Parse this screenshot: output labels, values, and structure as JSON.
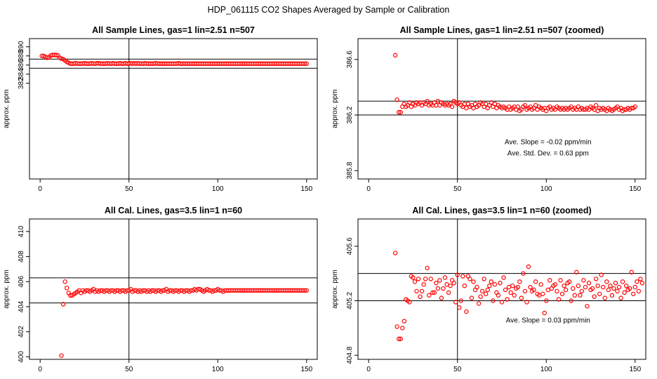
{
  "page_title": "HDP_061115  CO2 Shapes Averaged by Sample or Calibration",
  "colors": {
    "points": "#ff0000",
    "axes": "#000000",
    "background": "#ffffff"
  },
  "chart_data": [
    {
      "type": "scatter",
      "title": "All Sample Lines, gas=1 lin=2.51 n=507",
      "xlabel": "",
      "ylabel": "approx. ppm",
      "xlim": [
        0,
        150
      ],
      "ylim": [
        361,
        391.8
      ],
      "xticks": [
        "0",
        "50",
        "100",
        "150"
      ],
      "yticks": [
        "382",
        "384",
        "386",
        "388",
        "390"
      ],
      "ytick_values": [
        382,
        384,
        386,
        388,
        390
      ],
      "hlines": [
        387.3,
        385.3
      ],
      "vlines": [
        50
      ],
      "annotations": [],
      "x_start": 1,
      "x_step": 1,
      "values": [
        388.0,
        388.0,
        387.8,
        387.6,
        387.7,
        388.1,
        388.2,
        388.2,
        388.2,
        388.1,
        387.6,
        387.4,
        387.3,
        387.0,
        386.7,
        386.5,
        386.3,
        386.3,
        386.3,
        386.4,
        386.3,
        386.3,
        386.3,
        386.3,
        386.4,
        386.3,
        386.3,
        386.3,
        386.4,
        386.3,
        386.3,
        386.4,
        386.4,
        386.3,
        386.3,
        386.3,
        386.3,
        386.4,
        386.3,
        386.3,
        386.4,
        386.3,
        386.3,
        386.3,
        386.4,
        386.3,
        386.3,
        386.4,
        386.3,
        386.3,
        386.4,
        386.3,
        386.4,
        386.3,
        386.4,
        386.3,
        386.3,
        386.3,
        386.4,
        386.3,
        386.3,
        386.3,
        386.3,
        386.3,
        386.4,
        386.3,
        386.3,
        386.3,
        386.3,
        386.3,
        386.3,
        386.3,
        386.3,
        386.3,
        386.3,
        386.3,
        386.3,
        386.4,
        386.3,
        386.3,
        386.3,
        386.3,
        386.3,
        386.3,
        386.3,
        386.3,
        386.3,
        386.3,
        386.3,
        386.3,
        386.3,
        386.3,
        386.3,
        386.3,
        386.3,
        386.3,
        386.3,
        386.3,
        386.3,
        386.3,
        386.3,
        386.3,
        386.3,
        386.3,
        386.3,
        386.3,
        386.3,
        386.3,
        386.3,
        386.3,
        386.3,
        386.3,
        386.3,
        386.3,
        386.3,
        386.3,
        386.3,
        386.3,
        386.3,
        386.3,
        386.3,
        386.3,
        386.3,
        386.3,
        386.3,
        386.3,
        386.3,
        386.3,
        386.3,
        386.3,
        386.3,
        386.3,
        386.3,
        386.3,
        386.3,
        386.3,
        386.3,
        386.3,
        386.3,
        386.3,
        386.3,
        386.3,
        386.3,
        386.3,
        386.3,
        386.3,
        386.3,
        386.3,
        386.3,
        386.3
      ]
    },
    {
      "type": "scatter",
      "title": "All Sample Lines, gas=1 lin=2.51 n=507 (zoomed)",
      "xlabel": "",
      "ylabel": "approx. ppm",
      "xlim": [
        0,
        150
      ],
      "ylim": [
        385.74,
        386.75
      ],
      "xticks": [
        "0",
        "50",
        "100",
        "150"
      ],
      "yticks": [
        "385.8",
        "386.2",
        "386.6"
      ],
      "ytick_values": [
        385.8,
        386.2,
        386.6
      ],
      "hlines": [
        386.3,
        386.2
      ],
      "vlines": [
        50
      ],
      "annotations": [
        {
          "text": "Ave. Slope =  -0.02  ppm/min",
          "x": 101,
          "y": 385.99
        },
        {
          "text": "Ave. Std. Dev. =  0.63  ppm",
          "x": 101,
          "y": 385.91
        }
      ],
      "x_start": 15,
      "x_step": 1,
      "values": [
        386.63,
        386.31,
        386.22,
        386.22,
        386.26,
        386.28,
        386.26,
        386.27,
        386.29,
        386.26,
        386.28,
        386.27,
        386.29,
        386.28,
        386.29,
        386.27,
        386.29,
        386.28,
        386.3,
        386.27,
        386.28,
        386.27,
        386.29,
        386.27,
        386.3,
        386.27,
        386.29,
        386.28,
        386.27,
        386.28,
        386.27,
        386.28,
        386.26,
        386.3,
        386.29,
        386.28,
        386.29,
        386.27,
        386.26,
        386.28,
        386.25,
        386.28,
        386.26,
        386.27,
        386.25,
        386.28,
        386.26,
        386.27,
        386.29,
        386.28,
        386.26,
        386.28,
        386.25,
        386.27,
        386.29,
        386.26,
        386.28,
        386.25,
        386.27,
        386.26,
        386.25,
        386.26,
        386.25,
        386.24,
        386.26,
        386.24,
        386.25,
        386.26,
        386.24,
        386.26,
        386.23,
        386.24,
        386.26,
        386.27,
        386.24,
        386.25,
        386.26,
        386.24,
        386.25,
        386.27,
        386.24,
        386.26,
        386.25,
        386.24,
        386.25,
        386.23,
        386.25,
        386.26,
        386.24,
        386.25,
        386.24,
        386.26,
        386.25,
        386.24,
        386.25,
        386.24,
        386.25,
        386.24,
        386.25,
        386.26,
        386.24,
        386.25,
        386.24,
        386.26,
        386.24,
        386.25,
        386.24,
        386.24,
        386.25,
        386.24,
        386.26,
        386.25,
        386.24,
        386.27,
        386.23,
        386.25,
        386.24,
        386.25,
        386.24,
        386.23,
        386.25,
        386.24,
        386.23,
        386.24,
        386.25,
        386.26,
        386.24,
        386.25,
        386.23,
        386.24,
        386.24,
        386.25,
        386.24,
        386.25,
        386.25,
        386.26
      ]
    },
    {
      "type": "scatter",
      "title": "All Cal. Lines, gas=3.5 lin=1 n=60",
      "xlabel": "",
      "ylabel": "approx. ppm",
      "xlim": [
        0,
        150
      ],
      "ylim": [
        399.8,
        411.0
      ],
      "xticks": [
        "0",
        "50",
        "100",
        "150"
      ],
      "yticks": [
        "400",
        "402",
        "404",
        "406",
        "408",
        "410"
      ],
      "ytick_values": [
        400,
        402,
        404,
        406,
        408,
        410
      ],
      "hlines": [
        406.3,
        404.3
      ],
      "vlines": [
        50
      ],
      "annotations": [],
      "x_start": 12,
      "x_step": 1,
      "values": [
        400.1,
        404.2,
        406.0,
        405.5,
        405.1,
        404.9,
        404.9,
        405.0,
        405.1,
        405.2,
        405.3,
        405.1,
        405.3,
        405.2,
        405.3,
        405.3,
        405.2,
        405.3,
        405.4,
        405.2,
        405.3,
        405.2,
        405.3,
        405.3,
        405.2,
        405.3,
        405.3,
        405.2,
        405.3,
        405.3,
        405.2,
        405.3,
        405.3,
        405.2,
        405.3,
        405.3,
        405.2,
        405.3,
        405.3,
        405.4,
        405.2,
        405.3,
        405.3,
        405.2,
        405.3,
        405.2,
        405.3,
        405.3,
        405.2,
        405.3,
        405.2,
        405.3,
        405.3,
        405.2,
        405.3,
        405.3,
        405.2,
        405.3,
        405.3,
        405.4,
        405.2,
        405.3,
        405.3,
        405.2,
        405.3,
        405.3,
        405.2,
        405.3,
        405.3,
        405.2,
        405.3,
        405.3,
        405.2,
        405.3,
        405.3,
        405.4,
        405.3,
        405.4,
        405.4,
        405.3,
        405.2,
        405.3,
        405.4,
        405.3,
        405.3,
        405.2,
        405.3,
        405.3,
        405.4,
        405.3,
        405.3,
        405.2,
        405.3,
        405.3,
        405.3,
        405.3,
        405.3,
        405.3,
        405.3,
        405.3,
        405.3,
        405.3,
        405.3,
        405.3,
        405.3,
        405.3,
        405.3,
        405.3,
        405.3,
        405.3,
        405.3,
        405.3,
        405.3,
        405.3,
        405.3,
        405.3,
        405.3,
        405.3,
        405.3,
        405.3,
        405.3,
        405.3,
        405.3,
        405.3,
        405.3,
        405.3,
        405.3,
        405.3,
        405.3,
        405.3,
        405.3,
        405.3,
        405.3,
        405.3,
        405.3,
        405.3,
        405.3,
        405.3,
        405.3
      ]
    },
    {
      "type": "scatter",
      "title": "All Cal. Lines, gas=3.5 lin=1 n=60 (zoomed)",
      "xlabel": "",
      "ylabel": "approx. ppm",
      "xlim": [
        0,
        150
      ],
      "ylim": [
        404.77,
        405.8
      ],
      "xticks": [
        "0",
        "50",
        "100",
        "150"
      ],
      "yticks": [
        "404.8",
        "405.2",
        "405.6"
      ],
      "ytick_values": [
        404.8,
        405.2,
        405.6
      ],
      "hlines": [
        405.4,
        405.2
      ],
      "vlines": [
        50
      ],
      "annotations": [
        {
          "text": "Ave. Slope =  0.03  ppm/min",
          "x": 101,
          "y": 405.04
        }
      ],
      "x_start": 15,
      "x_step": 1,
      "values": [
        405.55,
        405.01,
        404.92,
        404.92,
        405.0,
        405.05,
        405.21,
        405.2,
        405.19,
        405.38,
        405.37,
        405.34,
        405.27,
        405.36,
        405.23,
        405.27,
        405.32,
        405.36,
        405.44,
        405.24,
        405.36,
        405.26,
        405.26,
        405.33,
        405.29,
        405.35,
        405.22,
        405.29,
        405.37,
        405.32,
        405.26,
        405.31,
        405.35,
        405.33,
        405.19,
        405.39,
        405.15,
        405.2,
        405.38,
        405.31,
        405.12,
        405.38,
        405.36,
        405.22,
        405.34,
        405.28,
        405.3,
        405.18,
        405.23,
        405.27,
        405.36,
        405.25,
        405.28,
        405.31,
        405.34,
        405.2,
        405.32,
        405.26,
        405.24,
        405.33,
        405.19,
        405.37,
        405.28,
        405.21,
        405.3,
        405.26,
        405.31,
        405.24,
        405.29,
        405.3,
        405.34,
        405.22,
        405.4,
        405.27,
        405.19,
        405.45,
        405.3,
        405.27,
        405.28,
        405.34,
        405.25,
        405.24,
        405.32,
        405.25,
        405.11,
        405.2,
        405.28,
        405.35,
        405.29,
        405.31,
        405.32,
        405.27,
        405.21,
        405.35,
        405.25,
        405.31,
        405.28,
        405.33,
        405.34,
        405.2,
        405.29,
        405.24,
        405.41,
        405.31,
        405.24,
        405.27,
        405.35,
        405.3,
        405.16,
        405.33,
        405.28,
        405.29,
        405.23,
        405.36,
        405.31,
        405.25,
        405.39,
        405.3,
        405.22,
        405.34,
        405.28,
        405.31,
        405.24,
        405.29,
        405.33,
        405.27,
        405.3,
        405.22,
        405.34,
        405.26,
        405.31,
        405.28,
        405.29,
        405.41,
        405.25,
        405.3,
        405.34,
        405.27,
        405.36,
        405.33
      ]
    }
  ]
}
